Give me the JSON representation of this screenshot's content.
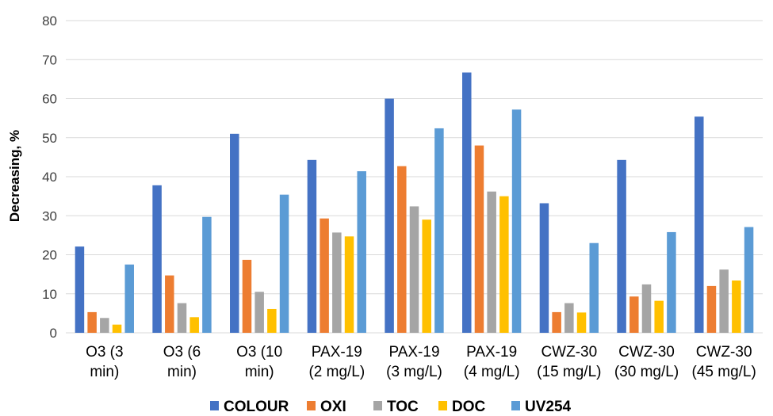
{
  "chart_data": {
    "type": "bar",
    "ylabel": "Decreasing, %",
    "ylim": [
      0,
      80
    ],
    "yticks": [
      0,
      10,
      20,
      30,
      40,
      50,
      60,
      70,
      80
    ],
    "grid": true,
    "legend_position": "bottom",
    "categories": [
      [
        "O3 (3",
        "min)"
      ],
      [
        "O3 (6",
        "min)"
      ],
      [
        "O3 (10",
        "min)"
      ],
      [
        "PAX-19",
        "(2 mg/L)"
      ],
      [
        "PAX-19",
        "(3 mg/L)"
      ],
      [
        "PAX-19",
        "(4 mg/L)"
      ],
      [
        "CWZ-30",
        "(15 mg/L)"
      ],
      [
        "CWZ-30",
        "(30 mg/L)"
      ],
      [
        "CWZ-30",
        "(45 mg/L)"
      ]
    ],
    "series": [
      {
        "name": "COLOUR",
        "color": "#4472c4",
        "values": [
          22.1,
          37.8,
          51.0,
          44.3,
          60.0,
          66.7,
          33.2,
          44.3,
          55.4
        ]
      },
      {
        "name": "OXI",
        "color": "#ed7d31",
        "values": [
          5.3,
          14.7,
          18.7,
          29.3,
          42.7,
          48.0,
          5.3,
          9.3,
          12.0
        ]
      },
      {
        "name": "TOC",
        "color": "#a5a5a5",
        "values": [
          3.8,
          7.6,
          10.5,
          25.7,
          32.4,
          36.2,
          7.6,
          12.4,
          16.2
        ]
      },
      {
        "name": "DOC",
        "color": "#ffc000",
        "values": [
          2.1,
          4.0,
          6.1,
          24.7,
          29.0,
          35.0,
          5.2,
          8.2,
          13.4
        ]
      },
      {
        "name": "UV254",
        "color": "#5b9bd5",
        "values": [
          17.5,
          29.7,
          35.4,
          41.4,
          52.4,
          57.2,
          23.0,
          25.8,
          27.1
        ]
      }
    ]
  }
}
